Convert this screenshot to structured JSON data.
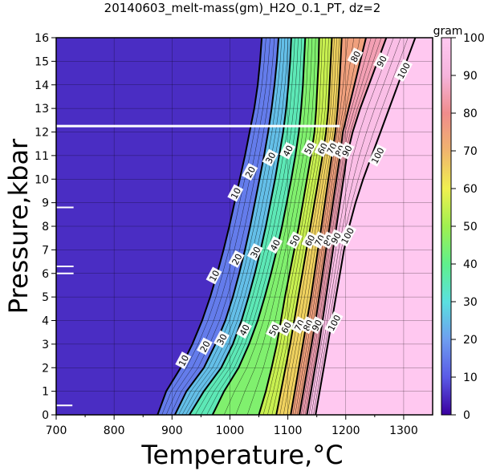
{
  "chart_data": {
    "type": "contour",
    "title": "20140603_melt-mass(gm)_H2O_0.1_PT, dz=2",
    "xlabel": "Temperature,°C",
    "ylabel": "Pressure,kbar",
    "xlim": [
      700,
      1350
    ],
    "ylim": [
      0,
      16
    ],
    "x_ticks": [
      "700",
      "800",
      "900",
      "1000",
      "1100",
      "1200",
      "1300"
    ],
    "y_ticks": [
      "0",
      "1",
      "2",
      "3",
      "4",
      "5",
      "6",
      "7",
      "8",
      "9",
      "10",
      "11",
      "12",
      "13",
      "14",
      "15",
      "16"
    ],
    "grid": true,
    "colorbar": {
      "label": "gram",
      "range": [
        0,
        100
      ],
      "ticks": [
        "0",
        "10",
        "20",
        "30",
        "40",
        "50",
        "60",
        "70",
        "80",
        "90",
        "100"
      ],
      "colormap": [
        "#3a00a0",
        "#5a5ae6",
        "#6e9ef0",
        "#5ae0e0",
        "#5ff08c",
        "#a0f050",
        "#f0f050",
        "#f0b46e",
        "#f08c8c",
        "#f5b4dc",
        "#ffc8f0"
      ]
    },
    "series": [
      {
        "level": 10,
        "points": [
          [
            875,
            0
          ],
          [
            890,
            1
          ],
          [
            915,
            2
          ],
          [
            935,
            3
          ],
          [
            952,
            4
          ],
          [
            966,
            5
          ],
          [
            978,
            6
          ],
          [
            989,
            7
          ],
          [
            999,
            8
          ],
          [
            1008,
            9
          ],
          [
            1017,
            10
          ],
          [
            1026,
            11
          ],
          [
            1034,
            12
          ],
          [
            1042,
            13
          ],
          [
            1048,
            14
          ],
          [
            1052,
            15
          ],
          [
            1055,
            16
          ]
        ]
      },
      {
        "level": 20,
        "points": [
          [
            905,
            0
          ],
          [
            925,
            1
          ],
          [
            955,
            2
          ],
          [
            975,
            3
          ],
          [
            992,
            4
          ],
          [
            1005,
            5
          ],
          [
            1016,
            6
          ],
          [
            1026,
            7
          ],
          [
            1035,
            8
          ],
          [
            1043,
            9
          ],
          [
            1051,
            10
          ],
          [
            1059,
            11
          ],
          [
            1066,
            12
          ],
          [
            1072,
            13
          ],
          [
            1077,
            14
          ],
          [
            1081,
            15
          ],
          [
            1084,
            16
          ]
        ]
      },
      {
        "level": 30,
        "points": [
          [
            930,
            0
          ],
          [
            955,
            1
          ],
          [
            985,
            2
          ],
          [
            1005,
            3
          ],
          [
            1020,
            4
          ],
          [
            1032,
            5
          ],
          [
            1043,
            6
          ],
          [
            1053,
            7
          ],
          [
            1062,
            8
          ],
          [
            1070,
            9
          ],
          [
            1078,
            10
          ],
          [
            1085,
            11
          ],
          [
            1092,
            12
          ],
          [
            1097,
            13
          ],
          [
            1101,
            14
          ],
          [
            1104,
            15
          ],
          [
            1106,
            16
          ]
        ]
      },
      {
        "level": 40,
        "points": [
          [
            970,
            0
          ],
          [
            990,
            1
          ],
          [
            1015,
            2
          ],
          [
            1033,
            3
          ],
          [
            1048,
            4
          ],
          [
            1060,
            5
          ],
          [
            1071,
            6
          ],
          [
            1081,
            7
          ],
          [
            1090,
            8
          ],
          [
            1098,
            9
          ],
          [
            1106,
            10
          ],
          [
            1113,
            11
          ],
          [
            1119,
            12
          ],
          [
            1123,
            13
          ],
          [
            1126,
            14
          ],
          [
            1128,
            15
          ],
          [
            1130,
            16
          ]
        ]
      },
      {
        "level": 50,
        "points": [
          [
            1050,
            0
          ],
          [
            1062,
            1
          ],
          [
            1072,
            2
          ],
          [
            1081,
            3
          ],
          [
            1088,
            4
          ],
          [
            1095,
            5
          ],
          [
            1103,
            6
          ],
          [
            1111,
            7
          ],
          [
            1119,
            8
          ],
          [
            1126,
            9
          ],
          [
            1133,
            10
          ],
          [
            1140,
            11
          ],
          [
            1146,
            12
          ],
          [
            1149,
            13
          ],
          [
            1151,
            14
          ],
          [
            1153,
            15
          ],
          [
            1154,
            16
          ]
        ]
      },
      {
        "level": 60,
        "points": [
          [
            1080,
            0
          ],
          [
            1088,
            1
          ],
          [
            1096,
            2
          ],
          [
            1104,
            3
          ],
          [
            1111,
            4
          ],
          [
            1118,
            5
          ],
          [
            1125,
            6
          ],
          [
            1132,
            7
          ],
          [
            1139,
            8
          ],
          [
            1146,
            9
          ],
          [
            1153,
            10
          ],
          [
            1160,
            11
          ],
          [
            1166,
            12
          ],
          [
            1170,
            13
          ],
          [
            1172,
            14
          ],
          [
            1174,
            15
          ],
          [
            1176,
            16
          ]
        ]
      },
      {
        "level": 70,
        "points": [
          [
            1105,
            0
          ],
          [
            1112,
            1
          ],
          [
            1119,
            2
          ],
          [
            1126,
            3
          ],
          [
            1133,
            4
          ],
          [
            1140,
            5
          ],
          [
            1146,
            6
          ],
          [
            1152,
            7
          ],
          [
            1158,
            8
          ],
          [
            1164,
            9
          ],
          [
            1170,
            10
          ],
          [
            1176,
            11
          ],
          [
            1182,
            12
          ],
          [
            1186,
            13
          ],
          [
            1189,
            14
          ],
          [
            1191,
            15
          ],
          [
            1193,
            16
          ]
        ]
      },
      {
        "level": 80,
        "points": [
          [
            1120,
            0
          ],
          [
            1127,
            1
          ],
          [
            1134,
            2
          ],
          [
            1141,
            3
          ],
          [
            1148,
            4
          ],
          [
            1154,
            5
          ],
          [
            1160,
            6
          ],
          [
            1166,
            7
          ],
          [
            1172,
            8
          ],
          [
            1178,
            9
          ],
          [
            1184,
            10
          ],
          [
            1190,
            11
          ],
          [
            1195,
            12
          ],
          [
            1205,
            13
          ],
          [
            1215,
            14
          ],
          [
            1225,
            15
          ],
          [
            1235,
            16
          ]
        ]
      },
      {
        "level": 90,
        "points": [
          [
            1133,
            0
          ],
          [
            1140,
            1
          ],
          [
            1147,
            2
          ],
          [
            1154,
            3
          ],
          [
            1160,
            4
          ],
          [
            1166,
            5
          ],
          [
            1172,
            6
          ],
          [
            1178,
            7
          ],
          [
            1184,
            8
          ],
          [
            1190,
            9
          ],
          [
            1196,
            10
          ],
          [
            1202,
            11
          ],
          [
            1212,
            12
          ],
          [
            1225,
            13
          ],
          [
            1240,
            14
          ],
          [
            1255,
            15
          ],
          [
            1270,
            16
          ]
        ]
      },
      {
        "level": 100,
        "points": [
          [
            1148,
            0
          ],
          [
            1155,
            1
          ],
          [
            1162,
            2
          ],
          [
            1169,
            3
          ],
          [
            1176,
            4
          ],
          [
            1183,
            5
          ],
          [
            1190,
            6
          ],
          [
            1197,
            7
          ],
          [
            1206,
            8
          ],
          [
            1217,
            9
          ],
          [
            1230,
            10
          ],
          [
            1245,
            11
          ],
          [
            1260,
            12
          ],
          [
            1275,
            13
          ],
          [
            1290,
            14
          ],
          [
            1305,
            15
          ],
          [
            1320,
            16
          ]
        ]
      }
    ],
    "contour_labels": [
      {
        "text": "10",
        "x": 1010,
        "y": 9.4
      },
      {
        "text": "20",
        "x": 1035,
        "y": 10.3
      },
      {
        "text": "30",
        "x": 1070,
        "y": 10.9
      },
      {
        "text": "40",
        "x": 1100,
        "y": 11.2
      },
      {
        "text": "50",
        "x": 1137,
        "y": 11.3
      },
      {
        "text": "60",
        "x": 1160,
        "y": 11.3
      },
      {
        "text": "70",
        "x": 1176,
        "y": 11.3
      },
      {
        "text": "80",
        "x": 1190,
        "y": 11.2
      },
      {
        "text": "90",
        "x": 1202,
        "y": 11.2
      },
      {
        "text": "100",
        "x": 1255,
        "y": 11.0
      },
      {
        "text": "10",
        "x": 973,
        "y": 5.9
      },
      {
        "text": "20",
        "x": 1012,
        "y": 6.6
      },
      {
        "text": "30",
        "x": 1044,
        "y": 6.9
      },
      {
        "text": "40",
        "x": 1078,
        "y": 7.2
      },
      {
        "text": "50",
        "x": 1112,
        "y": 7.4
      },
      {
        "text": "60",
        "x": 1138,
        "y": 7.4
      },
      {
        "text": "70",
        "x": 1155,
        "y": 7.4
      },
      {
        "text": "80",
        "x": 1170,
        "y": 7.4
      },
      {
        "text": "90",
        "x": 1183,
        "y": 7.5
      },
      {
        "text": "100",
        "x": 1203,
        "y": 7.6
      },
      {
        "text": "10",
        "x": 920,
        "y": 2.3
      },
      {
        "text": "20",
        "x": 957,
        "y": 2.9
      },
      {
        "text": "30",
        "x": 986,
        "y": 3.2
      },
      {
        "text": "40",
        "x": 1025,
        "y": 3.6
      },
      {
        "text": "50",
        "x": 1076,
        "y": 3.6
      },
      {
        "text": "60",
        "x": 1097,
        "y": 3.7
      },
      {
        "text": "70",
        "x": 1120,
        "y": 3.8
      },
      {
        "text": "80",
        "x": 1135,
        "y": 3.8
      },
      {
        "text": "90",
        "x": 1150,
        "y": 3.8
      },
      {
        "text": "100",
        "x": 1180,
        "y": 3.9
      },
      {
        "text": "80",
        "x": 1217,
        "y": 15.2
      },
      {
        "text": "90",
        "x": 1262,
        "y": 15.0
      },
      {
        "text": "100",
        "x": 1300,
        "y": 14.6
      }
    ]
  }
}
